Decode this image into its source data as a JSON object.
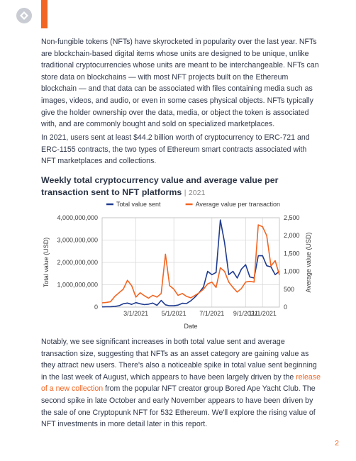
{
  "header": {
    "accent_color": "#f26522",
    "logo_icon": "company-logo-icon"
  },
  "paragraphs": {
    "p1": "Non-fungible tokens (NFTs) have skyrocketed in popularity over the last year. NFTs are blockchain-based digital items whose units are designed to be unique, unlike traditional cryptocurrencies whose units are meant to be interchangeable. NFTs can store data on blockchains — with most NFT projects built on the Ethereum blockchain — and that data can be associated with files containing media such as images, videos, and audio, or even in some cases physical objects. NFTs typically give the holder ownership over the data, media, or object the token is associated with, and are commonly bought and sold on specialized marketplaces.",
    "p2": "In 2021, users sent at least $44.2 billion worth of cryptocurrency to ERC-721 and ERC-1155 contracts, the two types of Ethereum smart contracts associated with NFT marketplaces and collections.",
    "p3_before": "Notably, we see significant increases in both total value sent and average transaction size, suggesting that NFTs as an asset category are gaining value as they attract new users. There's also a noticeable spike in total value sent beginning in the last week of August, which appears to have been largely driven by the ",
    "p3_link": "release of a new collection",
    "p3_after": " from the popular NFT creator group Bored Ape Yacht Club. The second spike in late October and early November appears to have been driven by the sale of one Cryptopunk NFT for 532 Ethereum. We'll explore the rising value of NFT investments in more detail later in this report."
  },
  "chart_title": "Weekly total cryptocurrency value and average value per transaction sent to NFT platforms",
  "chart_year": "2021",
  "chart_data": {
    "type": "line",
    "xlabel": "Date",
    "ylabel_left": "Total value (USD)",
    "ylabel_right": "Average value (USD)",
    "x_ticks": [
      "3/1/2021",
      "5/1/2021",
      "7/1/2021",
      "9/1/2021",
      "11/1/2021"
    ],
    "y_left_ticks": [
      "0",
      "1,000,000,000",
      "2,000,000,000",
      "3,000,000,000",
      "4,000,000,000"
    ],
    "y_right_ticks": [
      "0",
      "500",
      "1,000",
      "1,500",
      "2,000",
      "2,500"
    ],
    "ylim_left": [
      0,
      4000000000
    ],
    "ylim_right": [
      0,
      2500
    ],
    "grid": true,
    "legend_position": "top",
    "series": [
      {
        "name": "Total value sent",
        "axis": "left",
        "color": "#1f3b8f",
        "values": [
          10000000,
          15000000,
          20000000,
          30000000,
          60000000,
          150000000,
          180000000,
          120000000,
          200000000,
          150000000,
          110000000,
          130000000,
          180000000,
          80000000,
          300000000,
          100000000,
          60000000,
          60000000,
          90000000,
          170000000,
          160000000,
          280000000,
          450000000,
          650000000,
          900000000,
          1600000000,
          1450000000,
          1550000000,
          3900000000,
          2900000000,
          1450000000,
          1600000000,
          1300000000,
          1700000000,
          1900000000,
          1350000000,
          1300000000,
          2300000000,
          2300000000,
          1850000000,
          1800000000,
          1450000000,
          1600000000
        ]
      },
      {
        "name": "Average value per transaction",
        "axis": "right",
        "color": "#f26522",
        "values": [
          120,
          130,
          150,
          300,
          400,
          500,
          750,
          600,
          280,
          400,
          320,
          250,
          330,
          280,
          380,
          1480,
          600,
          500,
          330,
          380,
          300,
          260,
          330,
          400,
          500,
          650,
          700,
          550,
          1100,
          1000,
          700,
          550,
          420,
          520,
          700,
          720,
          700,
          2300,
          2250,
          2000,
          1150,
          1300,
          900
        ]
      }
    ]
  },
  "page_number": "2"
}
